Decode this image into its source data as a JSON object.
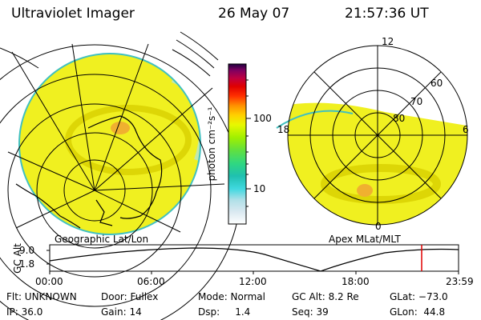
{
  "header": {
    "title": "Ultraviolet Imager",
    "date": "26 May 07",
    "time": "21:57:36 UT"
  },
  "left_panel": {
    "label": "Geographic Lat/Lon"
  },
  "right_panel": {
    "label": "Apex MLat/MLT",
    "mlt_labels": {
      "top": "12",
      "left": "18",
      "right": "6",
      "bottom": "0"
    },
    "lat_labels": [
      "60",
      "70",
      "80"
    ]
  },
  "colorbar": {
    "unit_label": "photon cm⁻²s⁻¹",
    "tick_100": "100",
    "tick_10": "10",
    "colors": [
      "#ffffff",
      "#d8e8f0",
      "#b0e0e8",
      "#40d8e0",
      "#20c0b0",
      "#30d880",
      "#60e040",
      "#a0f000",
      "#e8f800",
      "#ffd000",
      "#ff9000",
      "#ff3000",
      "#e00000",
      "#c00040",
      "#800060",
      "#200040"
    ]
  },
  "altitude_strip": {
    "axis_label": "GC Alt",
    "y_ticks": [
      "9.0",
      "1.8"
    ],
    "x_ticks": [
      "00:00",
      "06:00",
      "12:00",
      "18:00",
      "23:59"
    ],
    "current_time_marker": "21:57"
  },
  "info": {
    "row1": {
      "flt": "Flt: UNKNOWN",
      "door": "Door: Fullex",
      "mode": "Mode: Normal",
      "gcalt": "GC Alt: 8.2 Re",
      "glat": "GLat: −73.0"
    },
    "row2": {
      "ip": "IP: 36.0",
      "gain": "Gain: 14",
      "dsp": "Dsp:     1.4",
      "seq": "Seq: 39",
      "glon": "GLon:  44.8"
    }
  }
}
